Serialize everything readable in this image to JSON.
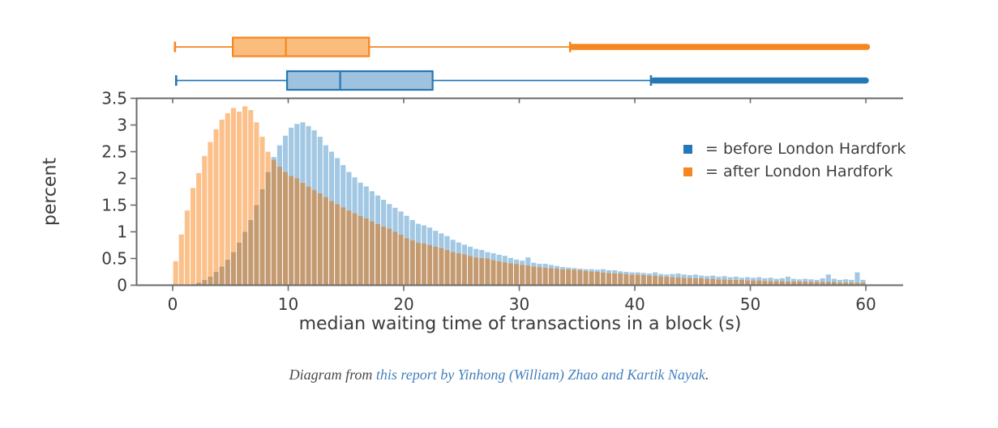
{
  "colors": {
    "before_main": "#2677b5",
    "before_box_fill": "#9fc2de",
    "before_bar": "#a2c8e4",
    "after_main": "#f6861f",
    "after_box_fill": "#fbbd7d",
    "after_bar": "#fcc08a",
    "overlap_bar": "#c49a70",
    "spine": "#6a6a6a",
    "tick_label": "#3b3b3b"
  },
  "legend": {
    "items": [
      {
        "series": "before",
        "label": "= before London Hardfork"
      },
      {
        "series": "after",
        "label": "= after London Hardfork"
      }
    ]
  },
  "axes": {
    "xlabel": "median waiting time of transactions in a block (s)",
    "ylabel": "percent",
    "x_ticks": [
      0,
      10,
      20,
      30,
      40,
      50,
      60
    ],
    "y_ticks": [
      "0",
      "0.5",
      "1",
      "1.5",
      "2",
      "2.5",
      "3",
      "3.5"
    ],
    "x_range": [
      -3.2,
      63.3
    ],
    "y_range": [
      0,
      3.5
    ],
    "grid": false
  },
  "chart_data": {
    "type": "histogram",
    "title": "",
    "xlabel": "median waiting time of transactions in a block (s)",
    "ylabel": "percent",
    "bin_width": 0.5,
    "bin_start": 0,
    "xlim": [
      -3.2,
      63.3
    ],
    "ylim": [
      0,
      3.5
    ],
    "legend_position": "upper right",
    "series": [
      {
        "name": "before London Hardfork",
        "values": [
          0,
          0,
          0,
          0.02,
          0.05,
          0.1,
          0.16,
          0.25,
          0.35,
          0.48,
          0.62,
          0.8,
          1.0,
          1.22,
          1.5,
          1.8,
          2.12,
          2.4,
          2.62,
          2.8,
          2.95,
          3.02,
          3.05,
          2.98,
          2.9,
          2.78,
          2.62,
          2.5,
          2.38,
          2.25,
          2.12,
          2.02,
          1.92,
          1.85,
          1.76,
          1.68,
          1.6,
          1.52,
          1.45,
          1.38,
          1.3,
          1.22,
          1.15,
          1.12,
          1.08,
          1.02,
          0.97,
          0.92,
          0.85,
          0.8,
          0.76,
          0.72,
          0.68,
          0.66,
          0.62,
          0.6,
          0.57,
          0.55,
          0.51,
          0.48,
          0.46,
          0.52,
          0.42,
          0.4,
          0.4,
          0.38,
          0.36,
          0.34,
          0.33,
          0.32,
          0.31,
          0.3,
          0.3,
          0.29,
          0.3,
          0.28,
          0.28,
          0.26,
          0.25,
          0.24,
          0.24,
          0.23,
          0.22,
          0.24,
          0.21,
          0.2,
          0.21,
          0.22,
          0.2,
          0.19,
          0.2,
          0.18,
          0.17,
          0.18,
          0.16,
          0.17,
          0.15,
          0.16,
          0.14,
          0.15,
          0.14,
          0.15,
          0.13,
          0.14,
          0.12,
          0.13,
          0.16,
          0.12,
          0.11,
          0.12,
          0.11,
          0.1,
          0.13,
          0.2,
          0.12,
          0.1,
          0.11,
          0.1,
          0.24,
          0.1
        ]
      },
      {
        "name": "after London Hardfork",
        "values": [
          0.45,
          0.95,
          1.4,
          1.82,
          2.1,
          2.42,
          2.68,
          2.92,
          3.1,
          3.22,
          3.32,
          3.25,
          3.35,
          3.28,
          3.05,
          2.78,
          2.5,
          2.35,
          2.22,
          2.12,
          2.05,
          2.0,
          1.92,
          1.85,
          1.78,
          1.72,
          1.65,
          1.58,
          1.52,
          1.46,
          1.4,
          1.35,
          1.3,
          1.25,
          1.2,
          1.15,
          1.1,
          1.06,
          1.0,
          0.95,
          0.88,
          0.84,
          0.8,
          0.78,
          0.75,
          0.72,
          0.7,
          0.66,
          0.62,
          0.6,
          0.58,
          0.55,
          0.52,
          0.51,
          0.5,
          0.47,
          0.45,
          0.43,
          0.41,
          0.4,
          0.38,
          0.37,
          0.35,
          0.34,
          0.33,
          0.32,
          0.31,
          0.3,
          0.3,
          0.29,
          0.28,
          0.27,
          0.26,
          0.25,
          0.24,
          0.23,
          0.22,
          0.22,
          0.21,
          0.2,
          0.2,
          0.19,
          0.18,
          0.18,
          0.17,
          0.16,
          0.15,
          0.15,
          0.14,
          0.14,
          0.13,
          0.13,
          0.12,
          0.12,
          0.11,
          0.11,
          0.1,
          0.1,
          0.1,
          0.09,
          0.09,
          0.09,
          0.08,
          0.08,
          0.08,
          0.08,
          0.07,
          0.07,
          0.07,
          0.07,
          0.06,
          0.06,
          0.06,
          0.06,
          0.06,
          0.05,
          0.05,
          0.05,
          0.05,
          0.05
        ]
      }
    ],
    "boxplots": [
      {
        "name": "after London Hardfork",
        "min": 0.2,
        "q1": 5.2,
        "median": 9.8,
        "q3": 17.0,
        "whisker_high": 34.4,
        "outliers_to": 60.1
      },
      {
        "name": "before London Hardfork",
        "min": 0.3,
        "q1": 9.9,
        "median": 14.5,
        "q3": 22.5,
        "whisker_high": 41.4,
        "outliers_to": 60.0
      }
    ]
  },
  "caption": {
    "prefix": "Diagram from ",
    "link_text": "this report by Yinhong (William) Zhao and Kartik Nayak",
    "suffix": "."
  }
}
